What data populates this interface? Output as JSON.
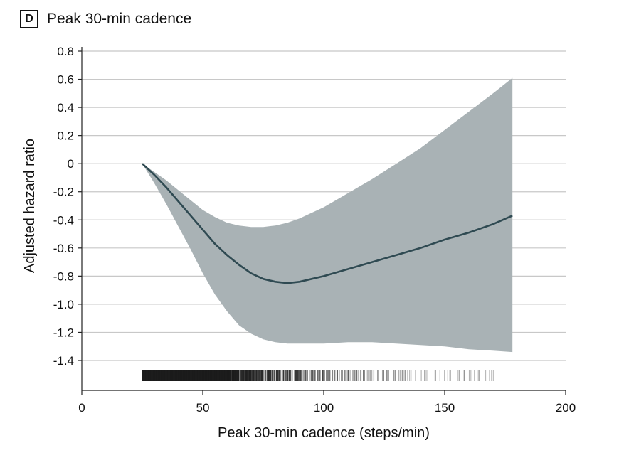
{
  "panel": {
    "letter": "D",
    "title": "Peak 30-min cadence"
  },
  "chart_data": {
    "type": "line",
    "title": "Peak 30-min cadence",
    "xlabel": "Peak 30-min cadence (steps/min)",
    "ylabel": "Adjusted hazard ratio",
    "xlim": [
      0,
      200
    ],
    "ylim": [
      -1.55,
      0.8
    ],
    "xticks": [
      0,
      50,
      100,
      150,
      200
    ],
    "xtick_labels": [
      "0",
      "50",
      "100",
      "150",
      "200"
    ],
    "yticks": [
      0.8,
      0.6,
      0.4,
      0.2,
      0,
      -0.2,
      -0.4,
      -0.6,
      -0.8,
      -1.0,
      -1.2,
      -1.4
    ],
    "ytick_labels": [
      "0.8",
      "0.6",
      "0.4",
      "0.2",
      "0",
      "-0.2",
      "-0.4",
      "-0.6",
      "-0.8",
      "-1.0",
      "-1.2",
      "-1.4"
    ],
    "grid": "horizontal",
    "colors": {
      "line": "#2f4a52",
      "band": "#a9b2b5",
      "grid": "#c8c8c8",
      "rug": "#1a1a1a"
    },
    "series": [
      {
        "x": [
          25,
          30,
          35,
          40,
          45,
          50,
          55,
          60,
          65,
          70,
          75,
          80,
          85,
          90,
          95,
          100,
          110,
          120,
          130,
          140,
          150,
          160,
          170,
          178
        ],
        "values": [
          0.0,
          -0.08,
          -0.17,
          -0.27,
          -0.37,
          -0.47,
          -0.57,
          -0.65,
          -0.72,
          -0.78,
          -0.82,
          -0.84,
          -0.85,
          -0.84,
          -0.82,
          -0.8,
          -0.75,
          -0.7,
          -0.65,
          -0.6,
          -0.54,
          -0.49,
          -0.43,
          -0.37
        ],
        "lower": [
          0.0,
          -0.14,
          -0.29,
          -0.45,
          -0.61,
          -0.78,
          -0.93,
          -1.05,
          -1.15,
          -1.21,
          -1.25,
          -1.27,
          -1.28,
          -1.28,
          -1.28,
          -1.28,
          -1.27,
          -1.27,
          -1.28,
          -1.29,
          -1.3,
          -1.32,
          -1.33,
          -1.34
        ],
        "upper": [
          0.0,
          -0.06,
          -0.12,
          -0.19,
          -0.26,
          -0.33,
          -0.38,
          -0.42,
          -0.44,
          -0.45,
          -0.45,
          -0.44,
          -0.42,
          -0.39,
          -0.35,
          -0.31,
          -0.21,
          -0.11,
          0.0,
          0.11,
          0.24,
          0.37,
          0.5,
          0.61
        ]
      }
    ],
    "rug": {
      "x_range": [
        25,
        178
      ],
      "density_peak": 60
    }
  }
}
